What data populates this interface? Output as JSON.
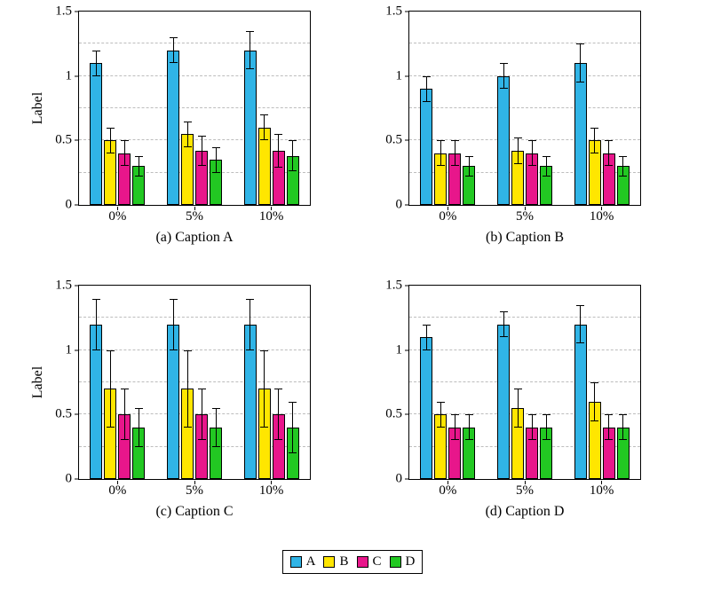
{
  "legend": {
    "entries": [
      {
        "label": "A",
        "color": "#30b4e6"
      },
      {
        "label": "B",
        "color": "#ffe600"
      },
      {
        "label": "C",
        "color": "#e8168b"
      },
      {
        "label": "D",
        "color": "#22c822"
      }
    ]
  },
  "style": {
    "grid_color": "#bdbdbd",
    "axis_color": "#000000"
  },
  "chart_data": [
    {
      "type": "bar",
      "caption": "(a) Caption A",
      "ylabel": "Label",
      "categories": [
        "0%",
        "5%",
        "10%"
      ],
      "ylim": [
        0,
        1.5
      ],
      "yticks": [
        0,
        0.5,
        1,
        1.5
      ],
      "ytick_labels": [
        "0",
        "0.5",
        "1",
        "1.5"
      ],
      "gridlines": [
        0.25,
        0.5,
        0.75,
        1,
        1.25
      ],
      "series": [
        {
          "name": "A",
          "values": [
            1.1,
            1.2,
            1.2
          ],
          "errors": [
            0.1,
            0.1,
            0.15
          ]
        },
        {
          "name": "B",
          "values": [
            0.5,
            0.55,
            0.6
          ],
          "errors": [
            0.1,
            0.1,
            0.1
          ]
        },
        {
          "name": "C",
          "values": [
            0.4,
            0.42,
            0.42
          ],
          "errors": [
            0.1,
            0.12,
            0.13
          ]
        },
        {
          "name": "D",
          "values": [
            0.3,
            0.35,
            0.38
          ],
          "errors": [
            0.08,
            0.1,
            0.12
          ]
        }
      ]
    },
    {
      "type": "bar",
      "caption": "(b) Caption B",
      "ylabel": "",
      "categories": [
        "0%",
        "5%",
        "10%"
      ],
      "ylim": [
        0,
        1.5
      ],
      "yticks": [
        0,
        0.5,
        1,
        1.5
      ],
      "ytick_labels": [
        "0",
        "0.5",
        "1",
        "1.5"
      ],
      "gridlines": [
        0.25,
        0.5,
        0.75,
        1,
        1.25
      ],
      "series": [
        {
          "name": "A",
          "values": [
            0.9,
            1.0,
            1.1
          ],
          "errors": [
            0.1,
            0.1,
            0.15
          ]
        },
        {
          "name": "B",
          "values": [
            0.4,
            0.42,
            0.5
          ],
          "errors": [
            0.1,
            0.1,
            0.1
          ]
        },
        {
          "name": "C",
          "values": [
            0.4,
            0.4,
            0.4
          ],
          "errors": [
            0.1,
            0.1,
            0.1
          ]
        },
        {
          "name": "D",
          "values": [
            0.3,
            0.3,
            0.3
          ],
          "errors": [
            0.08,
            0.08,
            0.08
          ]
        }
      ]
    },
    {
      "type": "bar",
      "caption": "(c) Caption C",
      "ylabel": "Label",
      "categories": [
        "0%",
        "5%",
        "10%"
      ],
      "ylim": [
        0,
        1.5
      ],
      "yticks": [
        0,
        0.5,
        1,
        1.5
      ],
      "ytick_labels": [
        "0",
        "0.5",
        "1",
        "1.5"
      ],
      "gridlines": [
        0.25,
        0.5,
        0.75,
        1,
        1.25
      ],
      "series": [
        {
          "name": "A",
          "values": [
            1.2,
            1.2,
            1.2
          ],
          "errors": [
            0.2,
            0.2,
            0.2
          ]
        },
        {
          "name": "B",
          "values": [
            0.7,
            0.7,
            0.7
          ],
          "errors": [
            0.3,
            0.3,
            0.3
          ]
        },
        {
          "name": "C",
          "values": [
            0.5,
            0.5,
            0.5
          ],
          "errors": [
            0.2,
            0.2,
            0.2
          ]
        },
        {
          "name": "D",
          "values": [
            0.4,
            0.4,
            0.4
          ],
          "errors": [
            0.15,
            0.15,
            0.2
          ]
        }
      ]
    },
    {
      "type": "bar",
      "caption": "(d) Caption D",
      "ylabel": "",
      "categories": [
        "0%",
        "5%",
        "10%"
      ],
      "ylim": [
        0,
        1.5
      ],
      "yticks": [
        0,
        0.5,
        1,
        1.5
      ],
      "ytick_labels": [
        "0",
        "0.5",
        "1",
        "1.5"
      ],
      "gridlines": [
        0.25,
        0.5,
        0.75,
        1,
        1.25
      ],
      "series": [
        {
          "name": "A",
          "values": [
            1.1,
            1.2,
            1.2
          ],
          "errors": [
            0.1,
            0.1,
            0.15
          ]
        },
        {
          "name": "B",
          "values": [
            0.5,
            0.55,
            0.6
          ],
          "errors": [
            0.1,
            0.15,
            0.15
          ]
        },
        {
          "name": "C",
          "values": [
            0.4,
            0.4,
            0.4
          ],
          "errors": [
            0.1,
            0.1,
            0.1
          ]
        },
        {
          "name": "D",
          "values": [
            0.4,
            0.4,
            0.4
          ],
          "errors": [
            0.1,
            0.1,
            0.1
          ]
        }
      ]
    }
  ]
}
